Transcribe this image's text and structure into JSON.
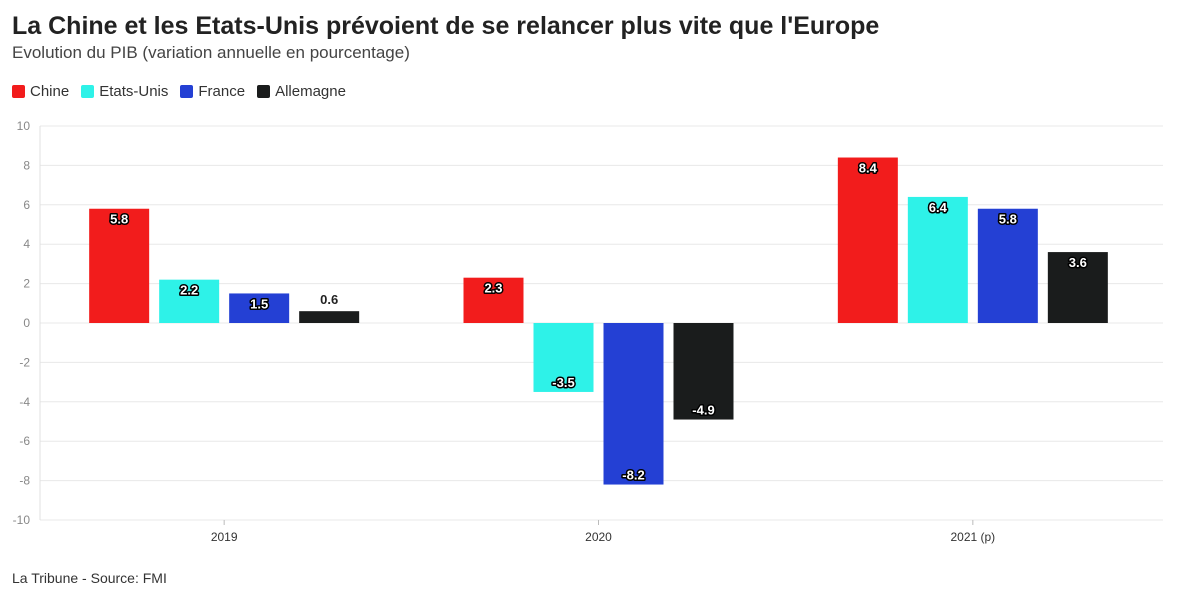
{
  "title": "La Chine et les Etats-Unis prévoient de se relancer plus vite que l'Europe",
  "subtitle": "Evolution du PIB (variation annuelle en pourcentage)",
  "source": "La Tribune - Source: FMI",
  "chart_data": {
    "type": "bar",
    "title": "La Chine et les Etats-Unis prévoient de se relancer plus vite que l'Europe",
    "subtitle": "Evolution du PIB (variation annuelle en pourcentage)",
    "categories": [
      "2019",
      "2020",
      "2021 (p)"
    ],
    "series": [
      {
        "name": "Chine",
        "color": "#f21c1c",
        "values": [
          5.8,
          2.3,
          8.4
        ]
      },
      {
        "name": "Etats-Unis",
        "color": "#2ef2e8",
        "values": [
          2.2,
          -3.5,
          6.4
        ]
      },
      {
        "name": "France",
        "color": "#2440d4",
        "values": [
          1.5,
          -8.2,
          5.8
        ]
      },
      {
        "name": "Allemagne",
        "color": "#1a1c1c",
        "values": [
          0.6,
          -4.9,
          3.6
        ]
      }
    ],
    "ylim": [
      -10,
      10
    ],
    "yticks": [
      10,
      8,
      6,
      4,
      2,
      0,
      -2,
      -4,
      -6,
      -8,
      -10
    ],
    "grid": true,
    "legend_position": "top-left"
  }
}
